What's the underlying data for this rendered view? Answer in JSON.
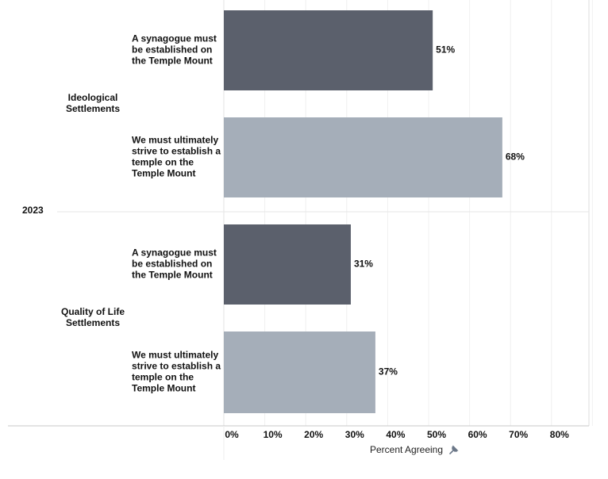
{
  "chart_data": {
    "type": "bar",
    "orientation": "horizontal",
    "year": "2023",
    "xlabel": "Percent Agreeing",
    "xlim": [
      0,
      90
    ],
    "xticks": [
      "0%",
      "10%",
      "20%",
      "30%",
      "40%",
      "50%",
      "60%",
      "70%",
      "80%"
    ],
    "grid": true,
    "groups": [
      {
        "name": "Ideological\nSettlements",
        "bars": [
          {
            "label": "A synagogue must\nbe established on\nthe Temple Mount",
            "value": 51,
            "value_label": "51%",
            "color": "#5b606c"
          },
          {
            "label": "We must ultimately\nstrive to establish a\ntemple on the\nTemple Mount",
            "value": 68,
            "value_label": "68%",
            "color": "#a5aeb9"
          }
        ]
      },
      {
        "name": "Quality of Life\nSettlements",
        "bars": [
          {
            "label": "A synagogue must\nbe established on\nthe Temple Mount",
            "value": 31,
            "value_label": "31%",
            "color": "#5b606c"
          },
          {
            "label": "We must ultimately\nstrive to establish a\ntemple on the\nTemple Mount",
            "value": 37,
            "value_label": "37%",
            "color": "#a5aeb9"
          }
        ]
      }
    ]
  }
}
